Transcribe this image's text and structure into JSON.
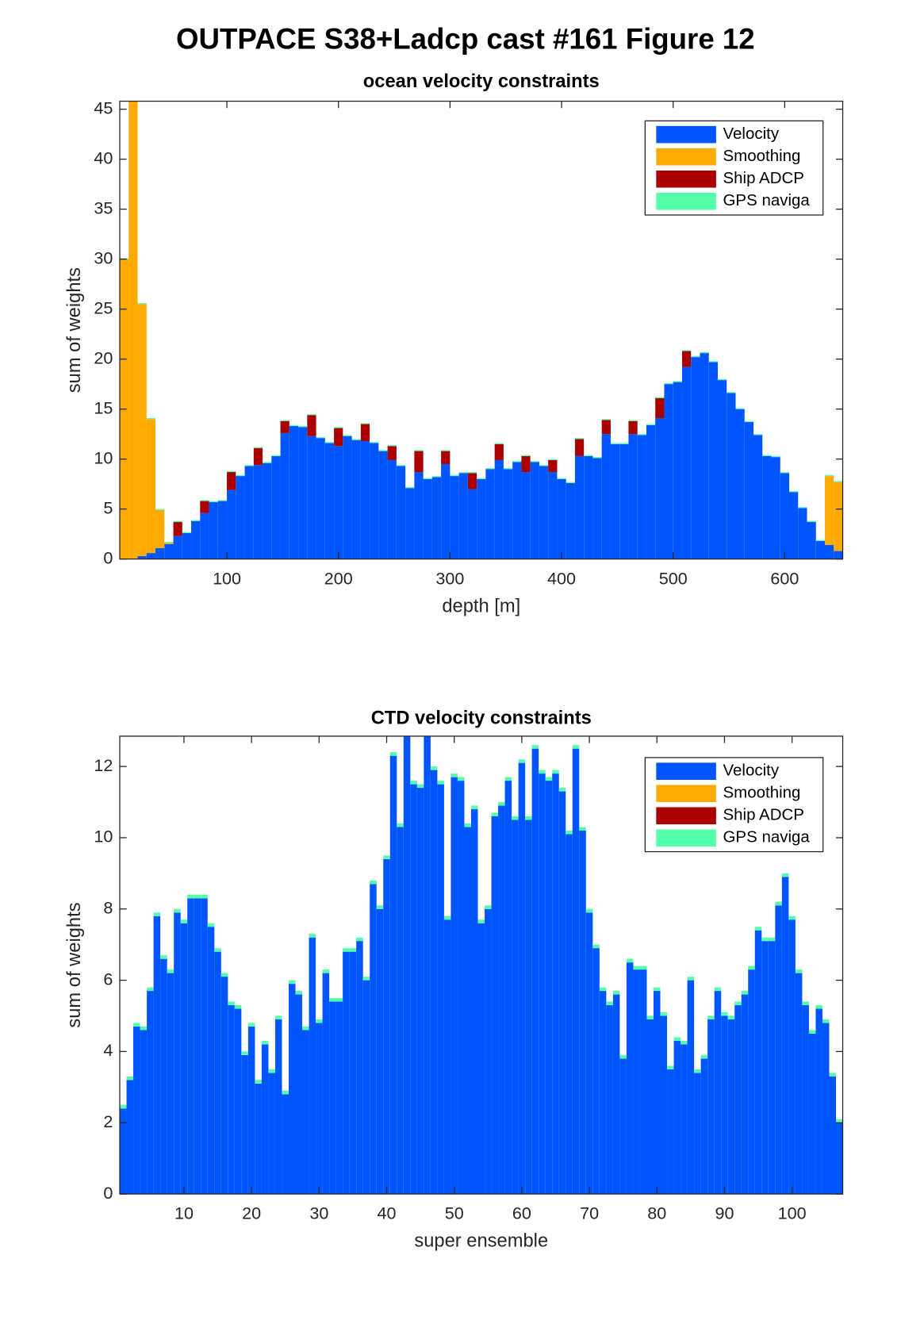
{
  "title": "OUTPACE S38+Ladcp cast #161  Figure 12",
  "chart_data": [
    {
      "type": "stacked_bar",
      "title": "ocean velocity constraints",
      "xlabel": "depth [m]",
      "ylabel": "sum of weights",
      "xlim": [
        4,
        652
      ],
      "ylim": [
        0,
        45.8
      ],
      "xticks": [
        100,
        200,
        300,
        400,
        500,
        600
      ],
      "yticks": [
        0,
        5,
        10,
        15,
        20,
        25,
        30,
        35,
        40,
        45
      ],
      "legend": "northeast",
      "x": [
        8,
        16,
        24,
        32,
        40,
        48,
        56,
        64,
        72,
        80,
        88,
        96,
        104,
        112,
        120,
        128,
        136,
        144,
        152,
        160,
        168,
        176,
        184,
        192,
        200,
        208,
        216,
        224,
        232,
        240,
        248,
        256,
        264,
        272,
        280,
        288,
        296,
        304,
        312,
        320,
        328,
        336,
        344,
        352,
        360,
        368,
        376,
        384,
        392,
        400,
        408,
        416,
        424,
        432,
        440,
        448,
        456,
        464,
        472,
        480,
        488,
        496,
        504,
        512,
        520,
        528,
        536,
        544,
        552,
        560,
        568,
        576,
        584,
        592,
        600,
        608,
        616,
        624,
        632,
        640,
        648
      ],
      "series": [
        {
          "name": "Velocity",
          "color": "#0055ff",
          "values": [
            0,
            0,
            0.3,
            0.6,
            1.1,
            1.5,
            2.3,
            2.6,
            3.8,
            4.6,
            5.7,
            5.8,
            6.9,
            8.3,
            9.3,
            9.4,
            9.6,
            10.3,
            12.6,
            13.3,
            13.2,
            12.3,
            12.1,
            11.6,
            11.3,
            12.3,
            11.9,
            11.8,
            11.6,
            10.8,
            9.9,
            9.3,
            7.1,
            8.7,
            8.0,
            8.2,
            9.5,
            8.3,
            8.6,
            7.0,
            8.0,
            9.0,
            9.9,
            9.0,
            9.7,
            8.7,
            9.7,
            9.3,
            8.7,
            8.0,
            7.6,
            10.3,
            10.3,
            10.1,
            12.5,
            11.5,
            11.5,
            12.5,
            12.4,
            13.4,
            14.1,
            17.5,
            17.7,
            19.2,
            20.2,
            20.6,
            19.7,
            17.9,
            16.6,
            15.0,
            13.7,
            12.4,
            10.3,
            10.2,
            8.6,
            6.7,
            5.1,
            3.7,
            1.8,
            1.4,
            0.8
          ]
        },
        {
          "name": "Smoothing",
          "color": "#ffaa00",
          "values": [
            30,
            45.8,
            25.2,
            13.4,
            3.8,
            0.1,
            0,
            0,
            0,
            0,
            0,
            0,
            0,
            0,
            0,
            0,
            0,
            0,
            0,
            0,
            0,
            0,
            0,
            0,
            0,
            0,
            0,
            0,
            0,
            0,
            0,
            0,
            0,
            0,
            0,
            0,
            0,
            0,
            0,
            0,
            0,
            0,
            0,
            0,
            0,
            0,
            0,
            0,
            0,
            0,
            0,
            0,
            0,
            0,
            0,
            0,
            0,
            0,
            0,
            0,
            0,
            0,
            0,
            0,
            0,
            0,
            0,
            0,
            0,
            0,
            0,
            0,
            0,
            0,
            0,
            0,
            0,
            0,
            0,
            6.9,
            6.9
          ]
        },
        {
          "name": "Ship ADCP",
          "color": "#aa0000",
          "values": [
            0,
            0,
            0,
            0,
            0,
            0,
            1.4,
            0,
            0,
            1.2,
            0,
            0,
            1.8,
            0,
            0,
            1.7,
            0,
            0,
            1.2,
            0,
            0,
            2.1,
            0,
            0,
            1.8,
            0,
            0,
            1.7,
            0,
            0,
            1.4,
            0,
            0,
            2.1,
            0,
            0,
            1.3,
            0,
            0,
            1.6,
            0,
            0,
            1.6,
            0,
            0,
            1.6,
            0,
            0,
            1.2,
            0,
            0,
            1.7,
            0,
            0,
            1.4,
            0,
            0,
            1.3,
            0,
            0,
            2.0,
            0,
            0,
            1.6,
            0,
            0,
            0,
            0,
            0,
            0,
            0,
            0,
            0,
            0,
            0,
            0,
            0,
            0,
            0,
            0,
            0
          ]
        },
        {
          "name": "GPS naviga",
          "color": "#55ffaa",
          "values": [
            0.1,
            0.1,
            0.1,
            0.1,
            0.1,
            0.1,
            0.1,
            0.1,
            0.1,
            0.1,
            0.1,
            0.1,
            0.1,
            0.1,
            0.1,
            0.1,
            0.1,
            0.1,
            0.1,
            0.1,
            0.1,
            0.1,
            0.1,
            0.1,
            0.1,
            0.1,
            0.1,
            0.1,
            0.1,
            0.1,
            0.1,
            0.1,
            0.1,
            0.1,
            0.1,
            0.1,
            0.1,
            0.1,
            0.1,
            0.1,
            0.1,
            0.1,
            0.1,
            0.1,
            0.1,
            0.1,
            0.1,
            0.1,
            0.1,
            0.1,
            0.1,
            0.1,
            0.1,
            0.1,
            0.1,
            0.1,
            0.1,
            0.1,
            0.1,
            0.1,
            0.1,
            0.1,
            0.1,
            0.1,
            0.1,
            0.1,
            0.1,
            0.1,
            0.1,
            0.1,
            0.1,
            0.1,
            0.1,
            0.1,
            0.1,
            0.1,
            0.1,
            0.1,
            0.1,
            0.1,
            0.1
          ]
        }
      ]
    },
    {
      "type": "stacked_bar",
      "title": "CTD velocity constraints",
      "xlabel": "super ensemble",
      "ylabel": "sum of weights",
      "xlim": [
        0.5,
        107.5
      ],
      "ylim": [
        0,
        12.85
      ],
      "xticks": [
        10,
        20,
        30,
        40,
        50,
        60,
        70,
        80,
        90,
        100
      ],
      "yticks": [
        0,
        2,
        4,
        6,
        8,
        10,
        12
      ],
      "legend": "northeast",
      "x": [
        1,
        2,
        3,
        4,
        5,
        6,
        7,
        8,
        9,
        10,
        11,
        12,
        13,
        14,
        15,
        16,
        17,
        18,
        19,
        20,
        21,
        22,
        23,
        24,
        25,
        26,
        27,
        28,
        29,
        30,
        31,
        32,
        33,
        34,
        35,
        36,
        37,
        38,
        39,
        40,
        41,
        42,
        43,
        44,
        45,
        46,
        47,
        48,
        49,
        50,
        51,
        52,
        53,
        54,
        55,
        56,
        57,
        58,
        59,
        60,
        61,
        62,
        63,
        64,
        65,
        66,
        67,
        68,
        69,
        70,
        71,
        72,
        73,
        74,
        75,
        76,
        77,
        78,
        79,
        80,
        81,
        82,
        83,
        84,
        85,
        86,
        87,
        88,
        89,
        90,
        91,
        92,
        93,
        94,
        95,
        96,
        97,
        98,
        99,
        100,
        101,
        102,
        103,
        104,
        105,
        106,
        107
      ],
      "series": [
        {
          "name": "Velocity",
          "color": "#0055ff",
          "values": [
            2.4,
            3.2,
            4.7,
            4.6,
            5.7,
            7.8,
            6.6,
            6.2,
            7.9,
            7.6,
            8.3,
            8.3,
            8.3,
            7.5,
            6.8,
            6.1,
            5.3,
            5.2,
            3.9,
            4.7,
            3.1,
            4.2,
            3.4,
            4.9,
            2.8,
            5.9,
            5.6,
            4.6,
            7.2,
            4.8,
            6.2,
            5.4,
            5.4,
            6.8,
            6.8,
            7.1,
            6.0,
            8.7,
            8.0,
            9.4,
            12.3,
            10.3,
            12.85,
            11.5,
            11.4,
            12.85,
            11.9,
            11.5,
            7.7,
            11.7,
            11.6,
            10.3,
            10.8,
            7.6,
            8.0,
            10.6,
            10.9,
            11.6,
            10.5,
            12.1,
            10.5,
            12.5,
            11.8,
            11.6,
            11.8,
            11.3,
            10.1,
            12.5,
            10.2,
            7.9,
            6.9,
            5.7,
            5.3,
            5.6,
            3.8,
            6.5,
            6.3,
            6.3,
            4.9,
            5.7,
            5.0,
            3.5,
            4.3,
            4.2,
            6.0,
            3.4,
            3.8,
            4.9,
            5.7,
            5.0,
            4.9,
            5.3,
            5.6,
            6.3,
            7.4,
            7.1,
            7.1,
            8.1,
            8.9,
            7.7,
            6.2,
            5.3,
            4.5,
            5.2,
            4.8,
            3.3,
            2.0
          ]
        },
        {
          "name": "Smoothing",
          "color": "#ffaa00",
          "values": [
            0,
            0,
            0,
            0,
            0,
            0,
            0,
            0,
            0,
            0,
            0,
            0,
            0,
            0,
            0,
            0,
            0,
            0,
            0,
            0,
            0,
            0,
            0,
            0,
            0,
            0,
            0,
            0,
            0,
            0,
            0,
            0,
            0,
            0,
            0,
            0,
            0,
            0,
            0,
            0,
            0,
            0,
            0,
            0,
            0,
            0,
            0,
            0,
            0,
            0,
            0,
            0,
            0,
            0,
            0,
            0,
            0,
            0,
            0,
            0,
            0,
            0,
            0,
            0,
            0,
            0,
            0,
            0,
            0,
            0,
            0,
            0,
            0,
            0,
            0,
            0,
            0,
            0,
            0,
            0,
            0,
            0,
            0,
            0,
            0,
            0,
            0,
            0,
            0,
            0,
            0,
            0,
            0,
            0,
            0,
            0,
            0,
            0,
            0,
            0,
            0,
            0,
            0,
            0,
            0,
            0,
            0
          ]
        },
        {
          "name": "Ship ADCP",
          "color": "#aa0000",
          "values": [
            0,
            0,
            0,
            0,
            0,
            0,
            0,
            0,
            0,
            0,
            0,
            0,
            0,
            0,
            0,
            0,
            0,
            0,
            0,
            0,
            0,
            0,
            0,
            0,
            0,
            0,
            0,
            0,
            0,
            0,
            0,
            0,
            0,
            0,
            0,
            0,
            0,
            0,
            0,
            0,
            0,
            0,
            0,
            0,
            0,
            0,
            0,
            0,
            0,
            0,
            0,
            0,
            0,
            0,
            0,
            0,
            0,
            0,
            0,
            0,
            0,
            0,
            0,
            0,
            0,
            0,
            0,
            0,
            0,
            0,
            0,
            0,
            0,
            0,
            0,
            0,
            0,
            0,
            0,
            0,
            0,
            0,
            0,
            0,
            0,
            0,
            0,
            0,
            0,
            0,
            0,
            0,
            0,
            0,
            0,
            0,
            0,
            0,
            0,
            0,
            0,
            0,
            0,
            0,
            0,
            0,
            0
          ]
        },
        {
          "name": "GPS naviga",
          "color": "#55ffaa",
          "values": [
            0.1,
            0.1,
            0.1,
            0.1,
            0.1,
            0.1,
            0.1,
            0.1,
            0.1,
            0.1,
            0.1,
            0.1,
            0.1,
            0.1,
            0.1,
            0.1,
            0.1,
            0.1,
            0.1,
            0.1,
            0.1,
            0.1,
            0.1,
            0.1,
            0.1,
            0.1,
            0.1,
            0.1,
            0.1,
            0.1,
            0.1,
            0.1,
            0.1,
            0.1,
            0.1,
            0.1,
            0.1,
            0.1,
            0.1,
            0.1,
            0.1,
            0.1,
            0.1,
            0.1,
            0.1,
            0.1,
            0.1,
            0.1,
            0.1,
            0.1,
            0.1,
            0.1,
            0.1,
            0.1,
            0.1,
            0.1,
            0.1,
            0.1,
            0.1,
            0.1,
            0.1,
            0.1,
            0.1,
            0.1,
            0.1,
            0.1,
            0.1,
            0.1,
            0.1,
            0.1,
            0.1,
            0.1,
            0.1,
            0.1,
            0.1,
            0.1,
            0.1,
            0.1,
            0.1,
            0.1,
            0.1,
            0.1,
            0.1,
            0.1,
            0.1,
            0.1,
            0.1,
            0.1,
            0.1,
            0.1,
            0.1,
            0.1,
            0.1,
            0.1,
            0.1,
            0.1,
            0.1,
            0.1,
            0.1,
            0.1,
            0.1,
            0.1,
            0.1,
            0.1,
            0.1,
            0.1,
            0.1
          ]
        }
      ]
    }
  ]
}
